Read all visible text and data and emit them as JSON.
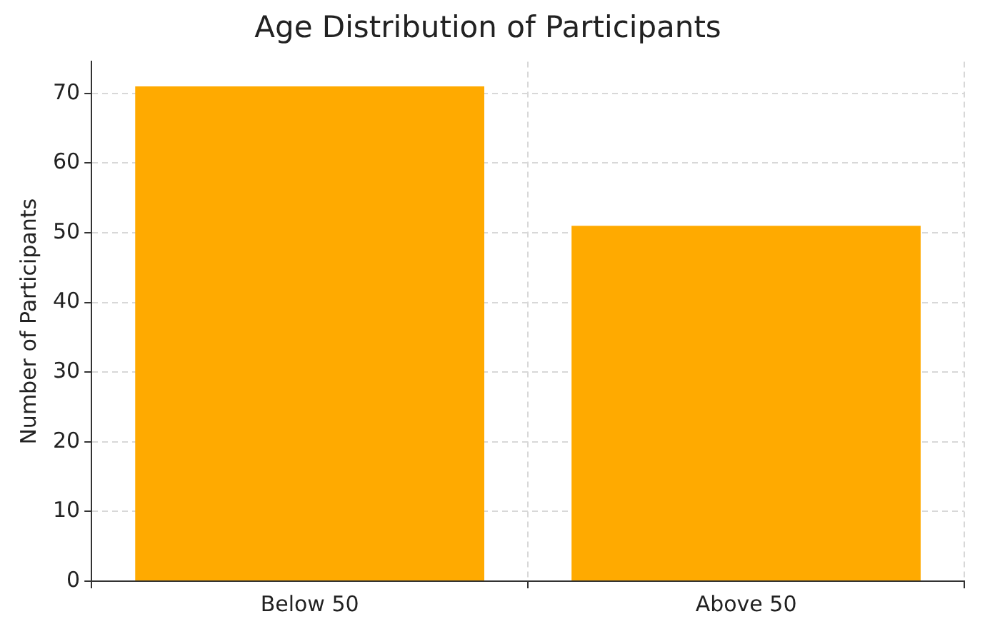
{
  "chart_data": {
    "type": "bar",
    "title": "Age Distribution of Participants",
    "ylabel": "Number of Participants",
    "categories": [
      "Below 50",
      "Above 50"
    ],
    "values": [
      71,
      51
    ],
    "color": "#ffaa00",
    "ylim": [
      0,
      74.55
    ],
    "yticks": [
      0,
      10,
      20,
      30,
      40,
      50,
      60,
      70
    ],
    "grid": true,
    "legend": false
  }
}
